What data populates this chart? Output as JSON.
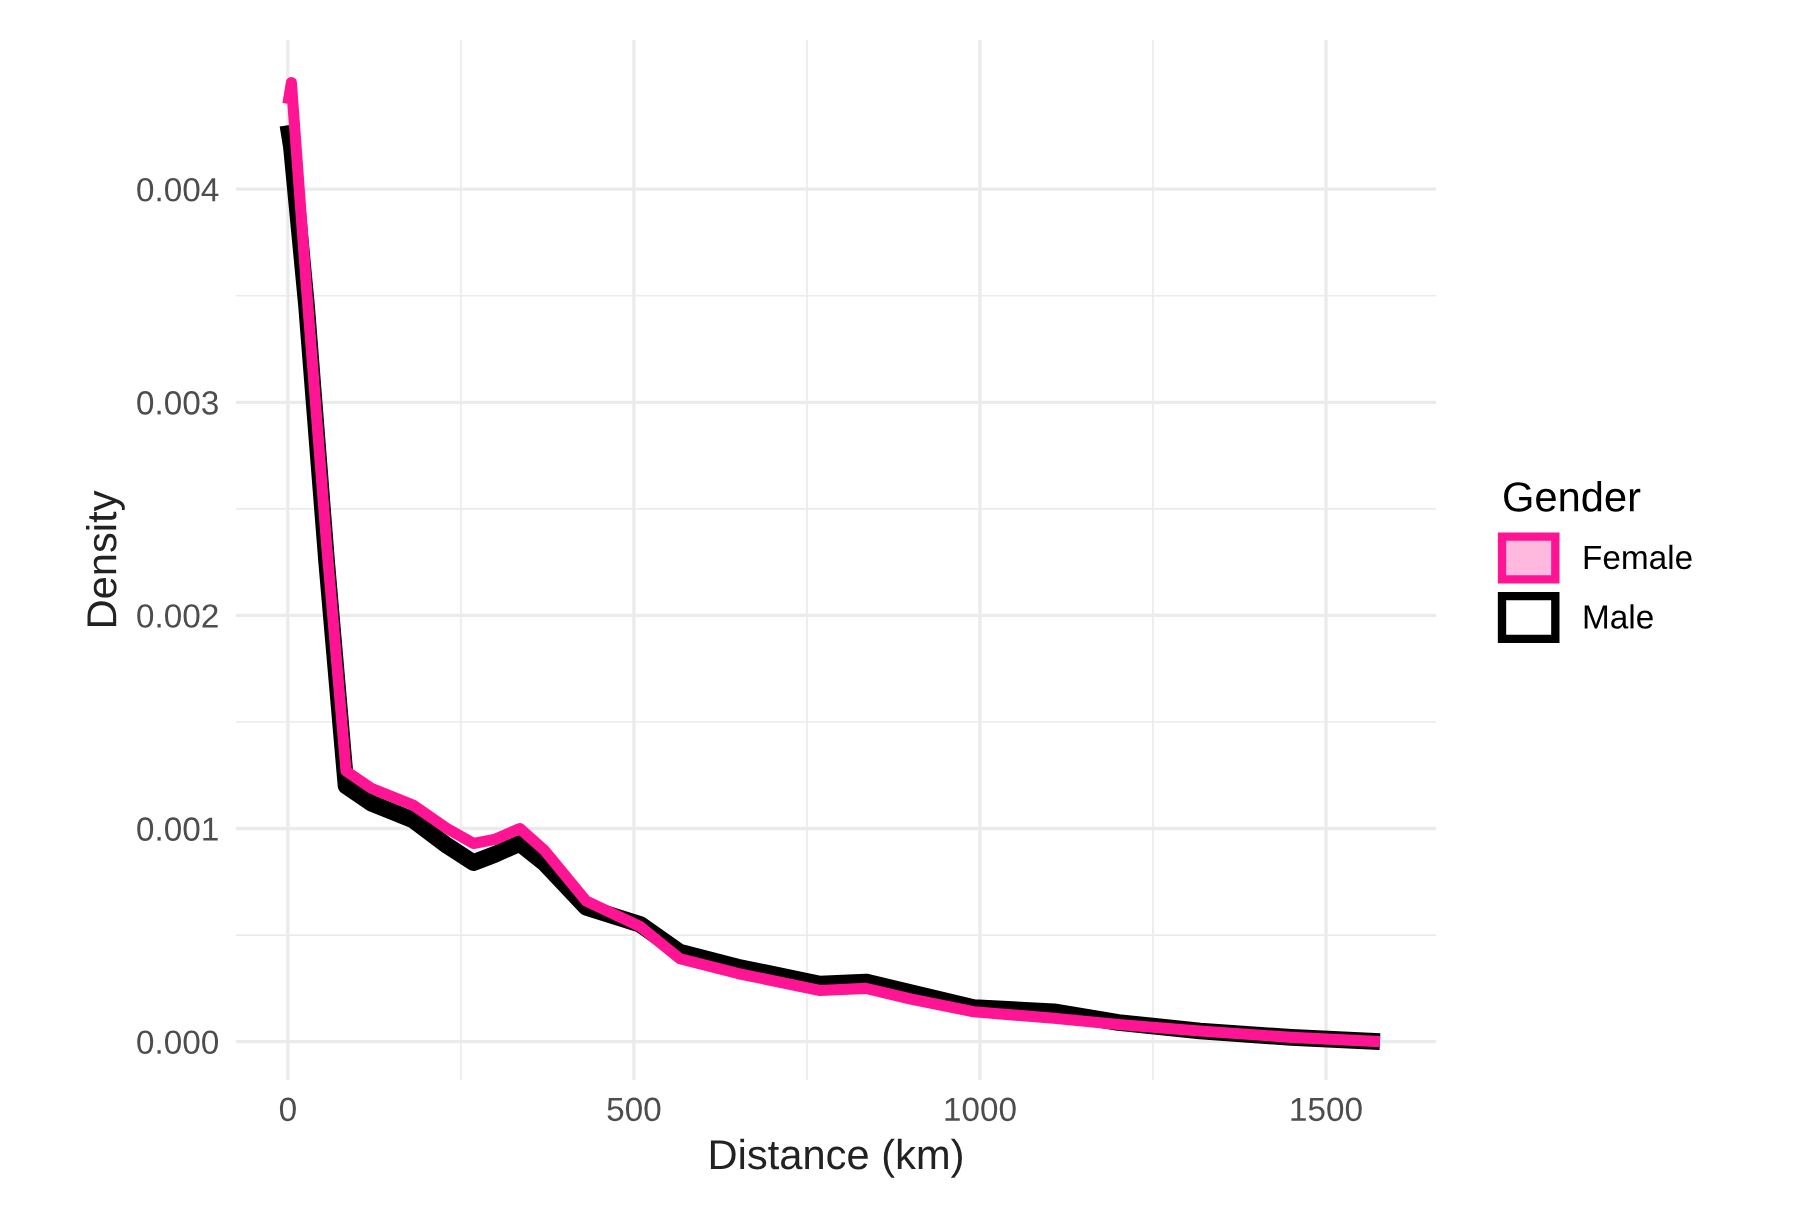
{
  "chart_data": {
    "type": "line",
    "xlabel": "Distance (km)",
    "ylabel": "Density",
    "legend_title": "Gender",
    "legend": "right",
    "grid": true,
    "xlim": [
      -75,
      1659
    ],
    "ylim": [
      -0.00018,
      0.0047
    ],
    "xticks": [
      0,
      500,
      1000,
      1500
    ],
    "yticks": [
      {
        "value": 0,
        "label": "0.000"
      },
      {
        "value": 0.001,
        "label": "0.001"
      },
      {
        "value": 0.002,
        "label": "0.002"
      },
      {
        "value": 0.003,
        "label": "0.003"
      },
      {
        "value": 0.004,
        "label": "0.004"
      }
    ],
    "series": [
      {
        "name": "Female",
        "color": "#ff1493",
        "x": [
          0,
          5,
          27,
          56,
          84,
          120,
          181,
          230,
          268,
          300,
          335,
          370,
          431,
          509,
          566,
          650,
          769,
          835,
          900,
          991,
          1107,
          1200,
          1318,
          1450,
          1578
        ],
        "values": [
          0.0044,
          0.0045,
          0.00353,
          0.00233,
          0.00127,
          0.00119,
          0.00111,
          0.001,
          0.00093,
          0.00095,
          0.001,
          0.0009,
          0.00066,
          0.00054,
          0.00039,
          0.00032,
          0.00024,
          0.00025,
          0.0002,
          0.00014,
          0.00011,
          8e-05,
          5e-05,
          2e-05,
          0.0
        ]
      },
      {
        "name": "Male",
        "color": "#000000",
        "x": [
          0,
          5,
          27,
          56,
          84,
          120,
          181,
          230,
          268,
          300,
          335,
          370,
          431,
          509,
          566,
          650,
          769,
          835,
          900,
          991,
          1107,
          1200,
          1318,
          1450,
          1578
        ],
        "values": [
          0.0043,
          0.0042,
          0.00345,
          0.00225,
          0.0012,
          0.00112,
          0.00104,
          0.00092,
          0.00084,
          0.00088,
          0.00093,
          0.00084,
          0.00063,
          0.00055,
          0.00042,
          0.00035,
          0.00027,
          0.00028,
          0.00023,
          0.00016,
          0.00014,
          9e-05,
          5e-05,
          2e-05,
          0.0
        ]
      }
    ]
  }
}
